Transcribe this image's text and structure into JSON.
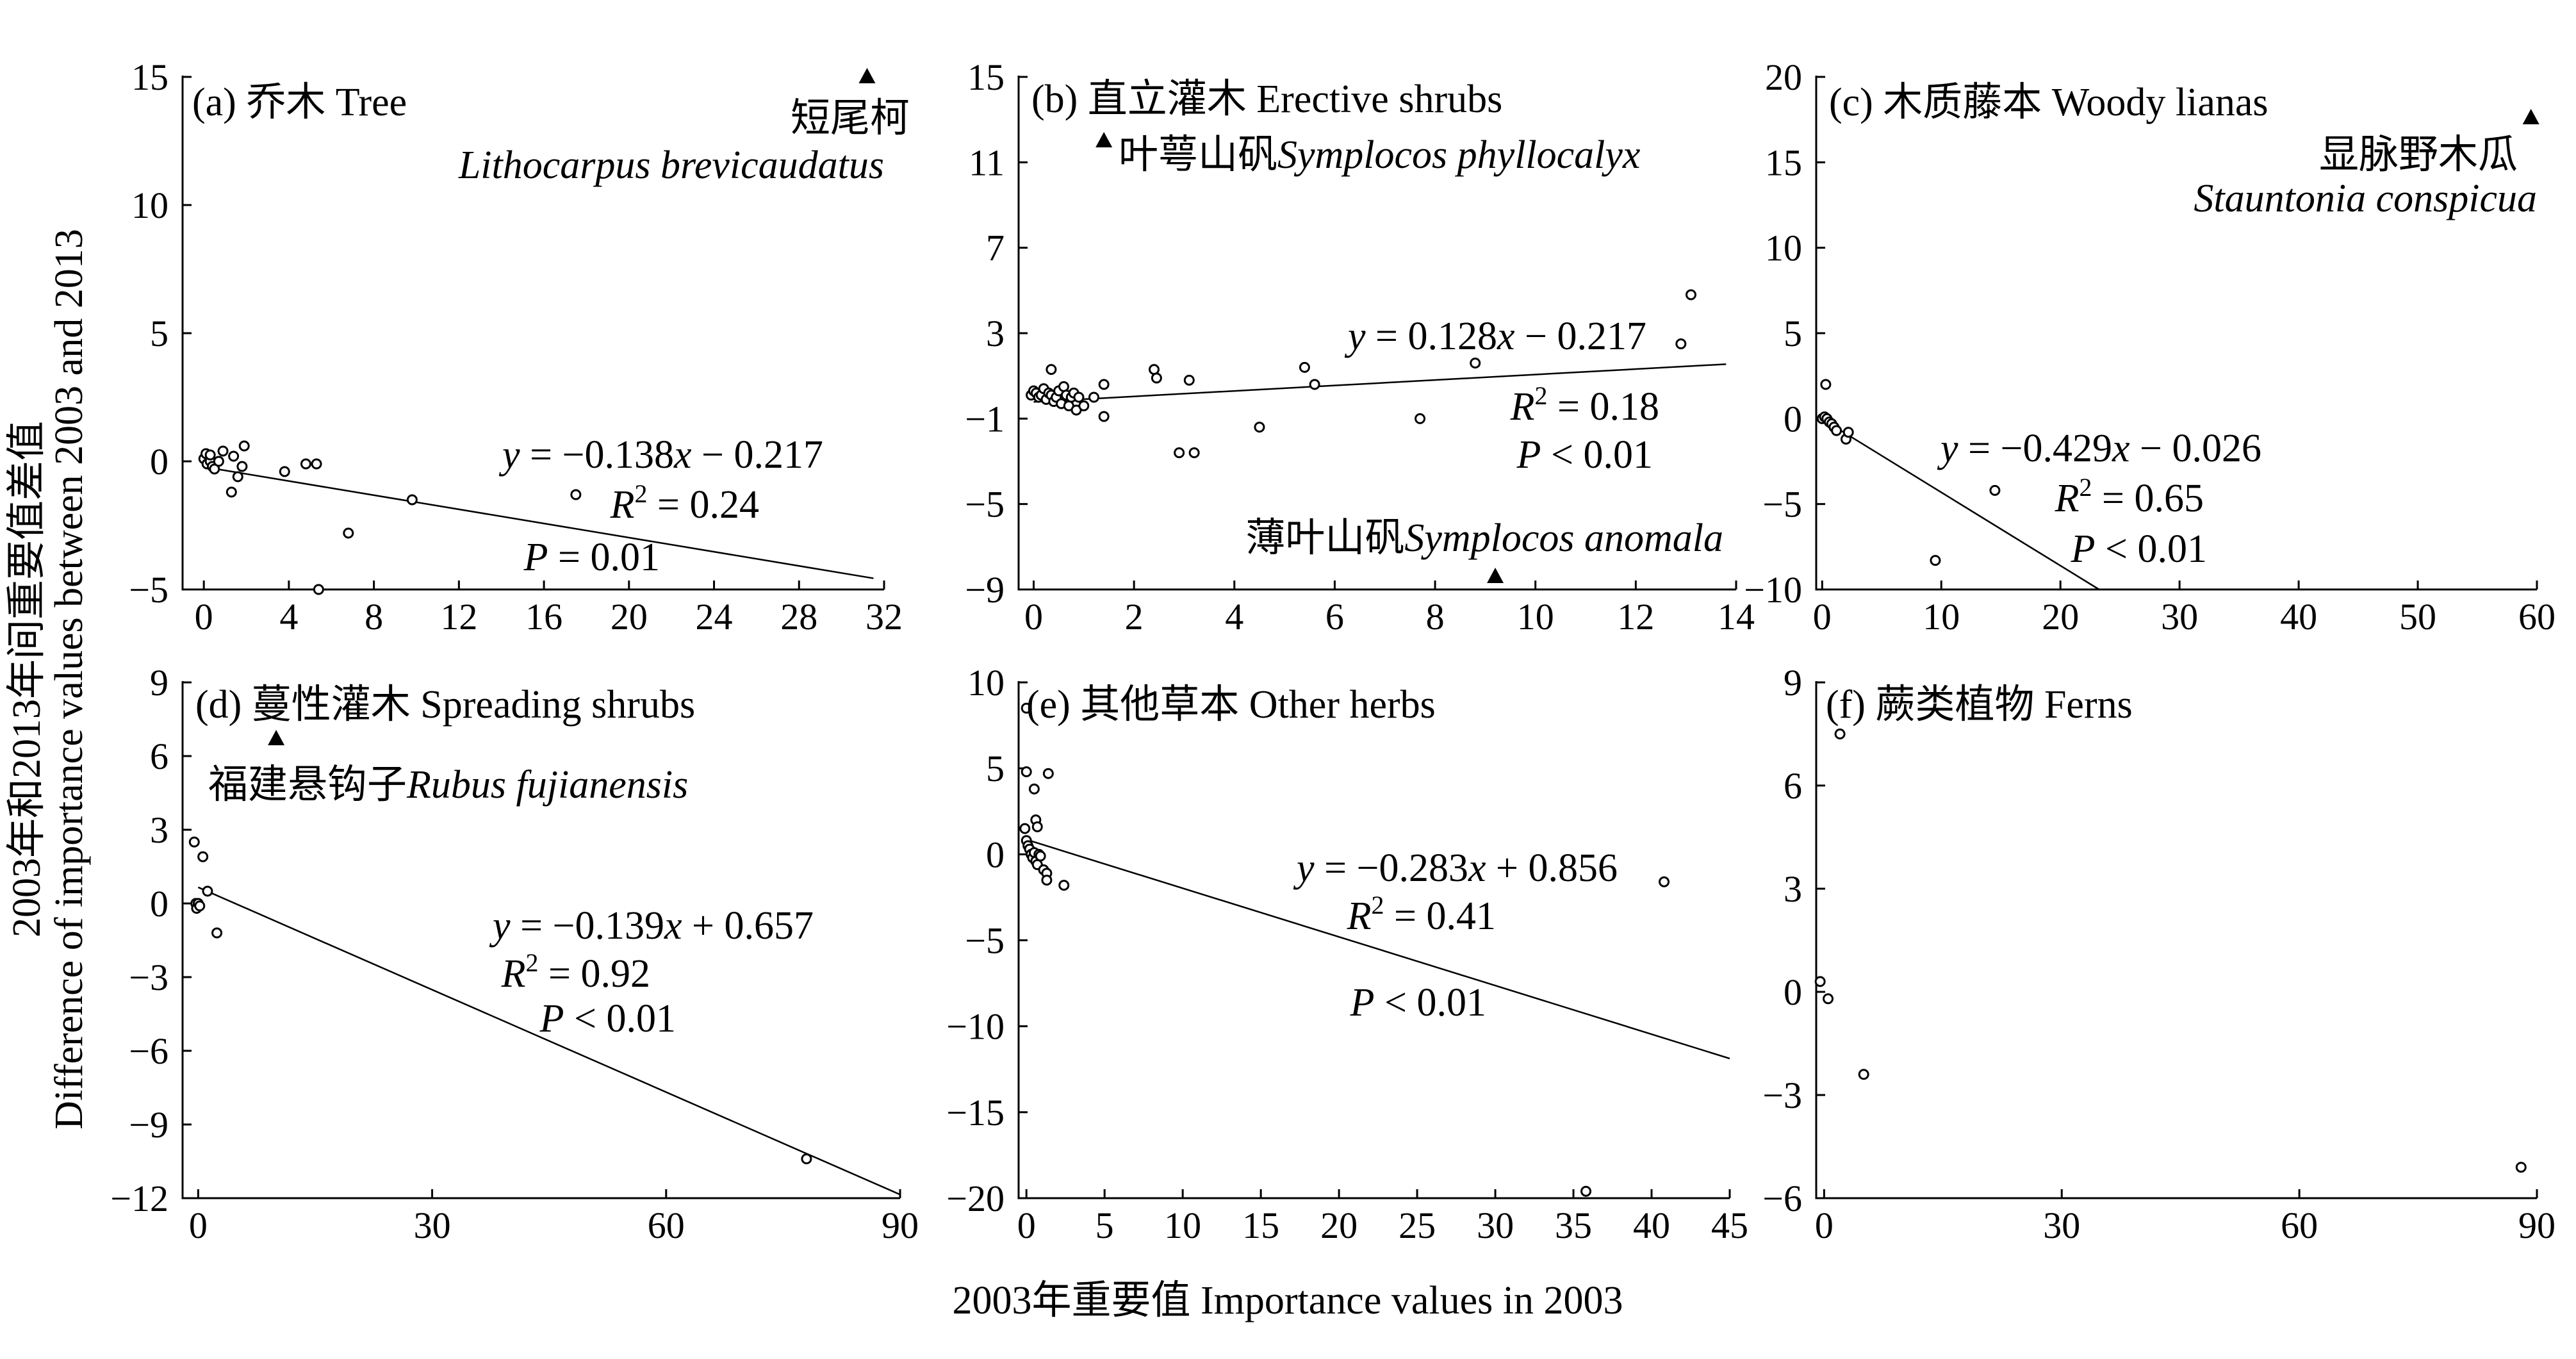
{
  "figure": {
    "ylabel_cn": "2003年和2013年间重要值差值",
    "ylabel_en": "Difference of importance values between 2003 and 2013",
    "xlabel": "2003年重要值 Importance values in 2003"
  },
  "chart_data": [
    {
      "type": "scatter",
      "panel": "a",
      "title": "(a) 乔木 Tree",
      "xlim": [
        -1,
        32
      ],
      "ylim": [
        -5,
        15
      ],
      "xticks": [
        0,
        4,
        8,
        12,
        16,
        20,
        24,
        28,
        32
      ],
      "xtick_labels": [
        "0",
        "4",
        "8",
        "12",
        "16",
        "20",
        "24",
        "28",
        "32"
      ],
      "yticks": [
        -5,
        0,
        5,
        10,
        15
      ],
      "ytick_labels": [
        "−5",
        "0",
        "5",
        "10",
        "15"
      ],
      "points": [
        [
          0.0,
          0.1
        ],
        [
          0.1,
          0.3
        ],
        [
          0.15,
          -0.1
        ],
        [
          0.3,
          0.0
        ],
        [
          0.4,
          -0.2
        ],
        [
          0.5,
          -0.3
        ],
        [
          0.7,
          0.0
        ],
        [
          0.3,
          0.25
        ],
        [
          0.9,
          0.4
        ],
        [
          1.3,
          -1.2
        ],
        [
          1.4,
          0.2
        ],
        [
          1.6,
          -0.6
        ],
        [
          1.8,
          -0.2
        ],
        [
          1.9,
          0.6
        ],
        [
          3.8,
          -0.4
        ],
        [
          4.8,
          -0.1
        ],
        [
          5.3,
          -0.1
        ],
        [
          5.4,
          -5.0
        ],
        [
          6.8,
          -2.8
        ],
        [
          9.8,
          -1.5
        ],
        [
          17.5,
          -1.3
        ]
      ],
      "outlier": {
        "x": 31.2,
        "y": 15.0
      },
      "fit": {
        "slope": -0.138,
        "intercept": -0.217,
        "x_range": [
          0,
          31.5
        ]
      },
      "species_cn": "短尾柯",
      "species_latin": "Lithocarpus brevicaudatus",
      "equation": {
        "y": "y",
        "eq": " = −0.138",
        "x": "x",
        "rest": " − 0.217"
      },
      "r2": {
        "r": "R",
        "sup": "2",
        "rest": " = 0.24"
      },
      "p": {
        "p": "P",
        "rest": " = 0.01"
      }
    },
    {
      "type": "scatter",
      "panel": "b",
      "title": "(b) 直立灌木 Erective shrubs",
      "xlim": [
        -0.3,
        14
      ],
      "ylim": [
        -9,
        15
      ],
      "xticks": [
        0,
        2,
        4,
        6,
        8,
        10,
        12,
        14
      ],
      "xtick_labels": [
        "0",
        "2",
        "4",
        "6",
        "8",
        "10",
        "12",
        "14"
      ],
      "yticks": [
        -9,
        -5,
        -1,
        3,
        7,
        11,
        15
      ],
      "ytick_labels": [
        "−9",
        "−5",
        "−1",
        "3",
        "7",
        "11",
        "15"
      ],
      "points": [
        [
          -0.05,
          0.1
        ],
        [
          0.0,
          0.3
        ],
        [
          0.05,
          0.2
        ],
        [
          0.1,
          0.0
        ],
        [
          0.15,
          0.1
        ],
        [
          0.2,
          0.4
        ],
        [
          0.25,
          -0.1
        ],
        [
          0.3,
          0.2
        ],
        [
          0.35,
          0.1
        ],
        [
          0.4,
          -0.2
        ],
        [
          0.45,
          0.0
        ],
        [
          0.5,
          0.3
        ],
        [
          0.55,
          -0.3
        ],
        [
          0.6,
          0.5
        ],
        [
          0.65,
          0.1
        ],
        [
          0.7,
          -0.4
        ],
        [
          0.75,
          0.0
        ],
        [
          0.8,
          0.2
        ],
        [
          0.85,
          -0.6
        ],
        [
          0.9,
          0.0
        ],
        [
          1.0,
          -0.4
        ],
        [
          1.2,
          0.0
        ],
        [
          0.35,
          1.3
        ],
        [
          1.4,
          -0.9
        ],
        [
          1.4,
          0.6
        ],
        [
          2.4,
          1.3
        ],
        [
          2.45,
          0.9
        ],
        [
          2.9,
          -2.6
        ],
        [
          3.1,
          0.8
        ],
        [
          3.2,
          -2.6
        ],
        [
          4.5,
          -1.4
        ],
        [
          5.4,
          1.4
        ],
        [
          5.6,
          0.6
        ],
        [
          7.7,
          -1.0
        ],
        [
          8.8,
          1.6
        ],
        [
          12.9,
          2.5
        ],
        [
          13.1,
          4.8
        ]
      ],
      "outlier": {
        "x": 9.2,
        "y": -8.4
      },
      "outlier2": {
        "x": 1.4,
        "y": 12.0
      },
      "fit": {
        "slope": 0.128,
        "intercept": -0.217,
        "x_range": [
          0,
          13.8
        ]
      },
      "species_cn": "叶萼山矾",
      "species_latin": "Symplocos phyllocalyx",
      "species2_cn": "薄叶山矾",
      "species2_latin": "Symplocos anomala",
      "equation": {
        "y": "y",
        "eq": " = 0.128",
        "x": "x",
        "rest": " − 0.217"
      },
      "r2": {
        "r": "R",
        "sup": "2",
        "rest": " = 0.18"
      },
      "p": {
        "p": "P",
        "rest": " < 0.01"
      }
    },
    {
      "type": "scatter",
      "panel": "c",
      "title": "(c) 木质藤本 Woody lianas",
      "xlim": [
        -0.5,
        60
      ],
      "ylim": [
        -10,
        20
      ],
      "xticks": [
        0,
        10,
        20,
        30,
        40,
        50,
        60
      ],
      "xtick_labels": [
        "0",
        "10",
        "20",
        "30",
        "40",
        "50",
        "60"
      ],
      "yticks": [
        -10,
        -5,
        0,
        5,
        10,
        15,
        20
      ],
      "ytick_labels": [
        "−10",
        "−5",
        "0",
        "5",
        "10",
        "15",
        "20"
      ],
      "points": [
        [
          0.0,
          0.0
        ],
        [
          0.2,
          0.1
        ],
        [
          0.4,
          0.0
        ],
        [
          0.6,
          -0.2
        ],
        [
          0.8,
          -0.3
        ],
        [
          1.0,
          -0.5
        ],
        [
          1.2,
          -0.7
        ],
        [
          0.3,
          2.0
        ],
        [
          2.0,
          -1.2
        ],
        [
          2.2,
          -0.8
        ],
        [
          14.5,
          -4.2
        ],
        [
          9.5,
          -8.3
        ]
      ],
      "outlier": {
        "x": 59.5,
        "y": 17.6
      },
      "fit": {
        "slope": -0.429,
        "intercept": -0.026,
        "x_range": [
          0,
          23.3
        ]
      },
      "species_cn": "显脉野木瓜",
      "species_latin": "Stauntonia conspicua",
      "equation": {
        "y": "y",
        "eq": " = −0.429",
        "x": "x",
        "rest": " − 0.026"
      },
      "r2": {
        "r": "R",
        "sup": "2",
        "rest": " = 0.65"
      },
      "p": {
        "p": "P",
        "rest": " < 0.01"
      }
    },
    {
      "type": "scatter",
      "panel": "d",
      "title": "(d) 蔓性灌木 Spreading shrubs",
      "xlim": [
        -2,
        90
      ],
      "ylim": [
        -12,
        9
      ],
      "xticks": [
        0,
        30,
        60,
        90
      ],
      "xtick_labels": [
        "0",
        "30",
        "60",
        "90"
      ],
      "yticks": [
        -12,
        -9,
        -6,
        -3,
        0,
        3,
        6,
        9
      ],
      "ytick_labels": [
        "−12",
        "−9",
        "−6",
        "−3",
        "0",
        "3",
        "6",
        "9"
      ],
      "points": [
        [
          -0.5,
          2.5
        ],
        [
          -0.3,
          0.0
        ],
        [
          -0.2,
          -0.2
        ],
        [
          0.0,
          0.0
        ],
        [
          0.2,
          -0.1
        ],
        [
          0.6,
          1.9
        ],
        [
          1.2,
          0.5
        ],
        [
          2.4,
          -1.2
        ],
        [
          78.0,
          -10.4
        ]
      ],
      "outlier": {
        "x": 10.0,
        "y": 6.7
      },
      "fit": {
        "slope": -0.139,
        "intercept": 0.657,
        "x_range": [
          0,
          90
        ]
      },
      "species_cn": "福建悬钩子",
      "species_latin": "Rubus fujianensis",
      "equation": {
        "y": "y",
        "eq": " = −0.139",
        "x": "x",
        "rest": " + 0.657"
      },
      "r2": {
        "r": "R",
        "sup": "2",
        "rest": " = 0.92"
      },
      "p": {
        "p": "P",
        "rest": " < 0.01"
      }
    },
    {
      "type": "scatter",
      "panel": "e",
      "title": "(e) 其他草本  Other herbs",
      "xlim": [
        -0.5,
        45
      ],
      "ylim": [
        -20,
        10
      ],
      "xticks": [
        0,
        5,
        10,
        15,
        20,
        25,
        30,
        35,
        40,
        45
      ],
      "xtick_labels": [
        "0",
        "5",
        "10",
        "15",
        "20",
        "25",
        "30",
        "35",
        "40",
        "45"
      ],
      "yticks": [
        -20,
        -15,
        -10,
        -5,
        0,
        5,
        10
      ],
      "ytick_labels": [
        "−20",
        "−15",
        "−10",
        "−5",
        "0",
        "5",
        "10"
      ],
      "points": [
        [
          0.0,
          8.5
        ],
        [
          0.0,
          4.8
        ],
        [
          1.4,
          4.7
        ],
        [
          0.5,
          3.8
        ],
        [
          0.6,
          2.0
        ],
        [
          0.7,
          1.6
        ],
        [
          -0.1,
          1.5
        ],
        [
          0.0,
          0.8
        ],
        [
          0.1,
          0.5
        ],
        [
          0.2,
          0.3
        ],
        [
          0.3,
          0.0
        ],
        [
          0.4,
          -0.2
        ],
        [
          0.5,
          0.1
        ],
        [
          0.6,
          -0.4
        ],
        [
          0.7,
          -0.6
        ],
        [
          0.8,
          0.0
        ],
        [
          0.9,
          -0.1
        ],
        [
          1.1,
          -0.9
        ],
        [
          1.3,
          -1.1
        ],
        [
          1.3,
          -1.5
        ],
        [
          2.4,
          -1.8
        ],
        [
          35.8,
          -19.6
        ],
        [
          40.8,
          -1.6
        ]
      ],
      "fit": {
        "slope": -0.283,
        "intercept": 0.856,
        "x_range": [
          0,
          45
        ]
      },
      "equation": {
        "y": "y",
        "eq": " = −0.283",
        "x": "x",
        "rest": " + 0.856"
      },
      "r2": {
        "r": "R",
        "sup": "2",
        "rest": " = 0.41"
      },
      "p": {
        "p": "P",
        "rest": " < 0.01"
      }
    },
    {
      "type": "scatter",
      "panel": "f",
      "title": "(f) 蕨类植物 Ferns",
      "xlim": [
        -1,
        90
      ],
      "ylim": [
        -6,
        9
      ],
      "xticks": [
        0,
        30,
        60,
        90
      ],
      "xtick_labels": [
        "0",
        "30",
        "60",
        "90"
      ],
      "yticks": [
        -6,
        -3,
        0,
        3,
        6,
        9
      ],
      "ytick_labels": [
        "−6",
        "−3",
        "0",
        "3",
        "6",
        "9"
      ],
      "points": [
        [
          -0.5,
          0.3
        ],
        [
          0.5,
          -0.2
        ],
        [
          2.0,
          7.5
        ],
        [
          5.0,
          -2.4
        ],
        [
          88.0,
          -5.1
        ]
      ]
    }
  ]
}
